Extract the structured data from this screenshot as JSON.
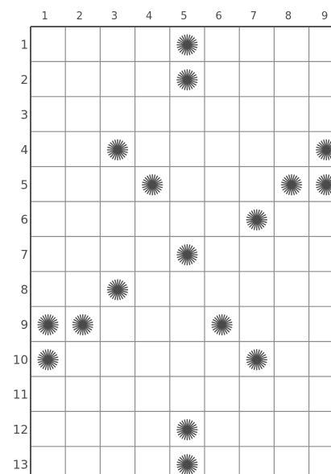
{
  "board": {
    "columns": 9,
    "rows": 13,
    "column_labels": [
      "1",
      "2",
      "3",
      "4",
      "5",
      "6",
      "7",
      "8",
      "9"
    ],
    "row_labels": [
      "1",
      "2",
      "3",
      "4",
      "5",
      "6",
      "7",
      "8",
      "9",
      "10",
      "11",
      "12",
      "13"
    ],
    "burst_color": "#4a4a4a",
    "grid_color": "#8c8c8c",
    "bursts": [
      {
        "row": 1,
        "col": 5
      },
      {
        "row": 2,
        "col": 5
      },
      {
        "row": 4,
        "col": 3
      },
      {
        "row": 4,
        "col": 9
      },
      {
        "row": 5,
        "col": 4
      },
      {
        "row": 5,
        "col": 8
      },
      {
        "row": 5,
        "col": 9
      },
      {
        "row": 6,
        "col": 7
      },
      {
        "row": 7,
        "col": 5
      },
      {
        "row": 8,
        "col": 3
      },
      {
        "row": 9,
        "col": 1
      },
      {
        "row": 9,
        "col": 2
      },
      {
        "row": 9,
        "col": 6
      },
      {
        "row": 10,
        "col": 1
      },
      {
        "row": 10,
        "col": 7
      },
      {
        "row": 12,
        "col": 5
      },
      {
        "row": 13,
        "col": 5
      }
    ]
  }
}
